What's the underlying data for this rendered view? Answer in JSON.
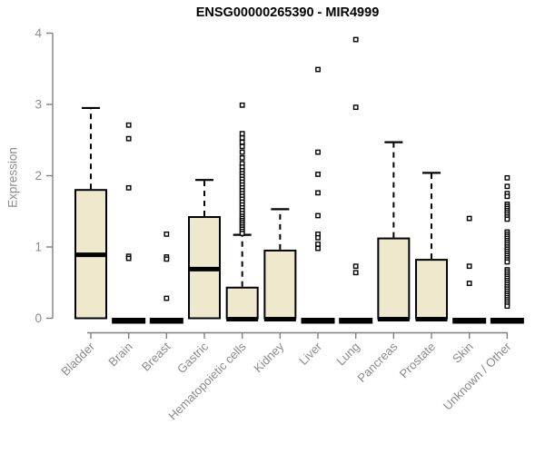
{
  "colors": {
    "box_fill": "#EEE8CD",
    "box_stroke": "#000000",
    "median": "#000000",
    "axis": "#7f7f7f",
    "tick_label": "#8c8c8c",
    "title": "#000000",
    "outlier_fill": "#ffffff"
  },
  "chart_data": {
    "type": "boxplot",
    "title": "ENSG00000265390 - MIR4999",
    "ylabel": "Expression",
    "xlabel": "",
    "ylim": [
      0,
      4
    ],
    "yticks": [
      0,
      1,
      2,
      3,
      4
    ],
    "grid": false,
    "legend": false,
    "categories": [
      "Bladder",
      "Brain",
      "Breast",
      "Gastric",
      "Hematopoietic cells",
      "Kidney",
      "Liver",
      "Lung",
      "Pancreas",
      "Prostate",
      "Skin",
      "Unknown / Other"
    ],
    "boxes": [
      {
        "category": "Bladder",
        "q1": 0,
        "median": 0.89,
        "q3": 1.8,
        "whisker_low": 0,
        "whisker_high": 2.95,
        "outliers": []
      },
      {
        "category": "Brain",
        "q1": 0,
        "median": 0,
        "q3": 0,
        "whisker_low": 0,
        "whisker_high": 0,
        "outliers": [
          2.71,
          2.52,
          1.83,
          0.87,
          0.84
        ]
      },
      {
        "category": "Breast",
        "q1": 0,
        "median": 0,
        "q3": 0,
        "whisker_low": 0,
        "whisker_high": 0,
        "outliers": [
          1.18,
          0.86,
          0.83,
          0.28
        ]
      },
      {
        "category": "Gastric",
        "q1": 0,
        "median": 0.69,
        "q3": 1.42,
        "whisker_low": 0,
        "whisker_high": 1.94,
        "outliers": []
      },
      {
        "category": "Hematopoietic cells",
        "q1": 0,
        "median": 0,
        "q3": 0.43,
        "whisker_low": 0,
        "whisker_high": 1.17,
        "outliers": [
          2.99,
          2.59,
          2.53,
          2.47,
          2.41,
          2.33,
          2.25,
          2.17,
          2.12,
          2.07,
          2.03,
          1.99,
          1.95,
          1.91,
          1.87,
          1.83,
          1.79,
          1.75,
          1.71,
          1.67,
          1.63,
          1.59,
          1.55,
          1.51,
          1.47,
          1.43,
          1.4,
          1.37,
          1.34,
          1.31,
          1.28,
          1.25,
          1.22,
          1.19
        ]
      },
      {
        "category": "Kidney",
        "q1": 0,
        "median": 0,
        "q3": 0.95,
        "whisker_low": 0,
        "whisker_high": 1.53,
        "outliers": []
      },
      {
        "category": "Liver",
        "q1": 0,
        "median": 0,
        "q3": 0,
        "whisker_low": 0,
        "whisker_high": 0,
        "outliers": [
          3.49,
          2.33,
          2.02,
          1.76,
          1.44,
          1.18,
          1.13,
          1.04,
          0.98
        ]
      },
      {
        "category": "Lung",
        "q1": 0,
        "median": 0,
        "q3": 0,
        "whisker_low": 0,
        "whisker_high": 0,
        "outliers": [
          3.91,
          2.96,
          0.73,
          0.64
        ]
      },
      {
        "category": "Pancreas",
        "q1": 0,
        "median": 0,
        "q3": 1.12,
        "whisker_low": 0,
        "whisker_high": 2.47,
        "outliers": []
      },
      {
        "category": "Prostate",
        "q1": 0,
        "median": 0,
        "q3": 0.82,
        "whisker_low": 0,
        "whisker_high": 2.04,
        "outliers": []
      },
      {
        "category": "Skin",
        "q1": 0,
        "median": 0,
        "q3": 0,
        "whisker_low": 0,
        "whisker_high": 0,
        "outliers": [
          1.4,
          0.73,
          0.49
        ]
      },
      {
        "category": "Unknown / Other",
        "q1": 0,
        "median": 0,
        "q3": 0,
        "whisker_low": 0,
        "whisker_high": 0,
        "outliers": [
          1.97,
          1.85,
          1.75,
          1.71,
          1.6,
          1.57,
          1.54,
          1.51,
          1.48,
          1.45,
          1.42,
          1.39,
          1.21,
          1.18,
          1.15,
          1.12,
          1.09,
          1.06,
          1.03,
          1.0,
          0.97,
          0.94,
          0.91,
          0.88,
          0.85,
          0.82,
          0.79,
          0.68,
          0.65,
          0.62,
          0.59,
          0.56,
          0.53,
          0.5,
          0.47,
          0.44,
          0.41,
          0.38,
          0.35,
          0.32,
          0.29,
          0.26,
          0.23,
          0.2,
          0.17
        ]
      }
    ]
  }
}
